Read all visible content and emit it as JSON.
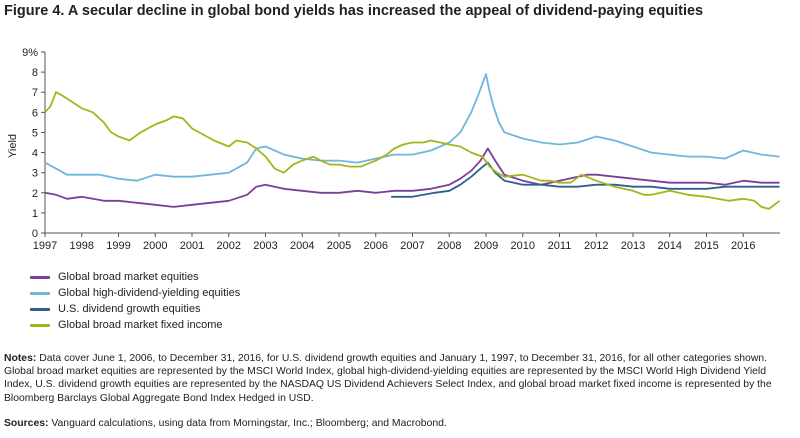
{
  "title": "Figure 4. A secular decline in global bond yields has increased the appeal of dividend-paying equities",
  "notes_label": "Notes:",
  "notes_text": "Data cover June 1, 2006, to December 31, 2016, for U.S. dividend growth equities and January 1, 1997, to December 31, 2016, for all other categories shown. Global broad market equities are represented by the MSCI World Index, global high-dividend-yielding equities are represented by the MSCI World High Dividend Yield Index, U.S. dividend growth equities are represented by the NASDAQ US Dividend Achievers Select Index, and global broad market fixed income is represented by the Bloomberg Barclays Global Aggregate Bond Index Hedged in USD.",
  "sources_label": "Sources:",
  "sources_text": "Vanguard calculations, using data from Morningstar, Inc.; Bloomberg; and Macrobond.",
  "chart_data": {
    "type": "line",
    "ylabel": "Yield",
    "ylim": [
      0,
      9
    ],
    "yticks": [
      "0",
      "1",
      "2",
      "3",
      "4",
      "5",
      "6",
      "7",
      "8",
      "9%"
    ],
    "xlim": [
      1997,
      2017
    ],
    "xticks": [
      "1997",
      "1998",
      "1999",
      "2000",
      "2001",
      "2002",
      "2003",
      "2004",
      "2005",
      "2006",
      "2007",
      "2008",
      "2009",
      "2010",
      "2011",
      "2012",
      "2013",
      "2014",
      "2015",
      "2016"
    ],
    "grid": false,
    "legend": "bottom-left",
    "series": [
      {
        "name": "Global broad market equities",
        "color": "#7b3f98",
        "x": [
          1997.0,
          1997.3,
          1997.6,
          1998.0,
          1998.3,
          1998.6,
          1999.0,
          1999.5,
          2000.0,
          2000.5,
          2001.0,
          2001.5,
          2002.0,
          2002.5,
          2002.75,
          2003.0,
          2003.5,
          2004.0,
          2004.5,
          2005.0,
          2005.5,
          2006.0,
          2006.5,
          2007.0,
          2007.5,
          2008.0,
          2008.3,
          2008.6,
          2008.85,
          2009.05,
          2009.25,
          2009.5,
          2010.0,
          2010.5,
          2011.0,
          2011.5,
          2011.75,
          2012.0,
          2012.5,
          2013.0,
          2013.5,
          2014.0,
          2014.5,
          2015.0,
          2015.5,
          2016.0,
          2016.5,
          2016.99
        ],
        "y": [
          2.0,
          1.9,
          1.7,
          1.8,
          1.7,
          1.6,
          1.6,
          1.5,
          1.4,
          1.3,
          1.4,
          1.5,
          1.6,
          1.9,
          2.3,
          2.4,
          2.2,
          2.1,
          2.0,
          2.0,
          2.1,
          2.0,
          2.1,
          2.1,
          2.2,
          2.4,
          2.7,
          3.1,
          3.6,
          4.2,
          3.6,
          2.9,
          2.6,
          2.4,
          2.6,
          2.8,
          2.9,
          2.9,
          2.8,
          2.7,
          2.6,
          2.5,
          2.5,
          2.5,
          2.4,
          2.6,
          2.5,
          2.5
        ]
      },
      {
        "name": "Global high-dividend-yielding equities",
        "color": "#6fb6dd",
        "x": [
          1997.0,
          1997.3,
          1997.6,
          1998.0,
          1998.5,
          1999.0,
          1999.5,
          2000.0,
          2000.5,
          2001.0,
          2001.5,
          2002.0,
          2002.5,
          2002.75,
          2003.0,
          2003.5,
          2004.0,
          2004.5,
          2005.0,
          2005.5,
          2006.0,
          2006.5,
          2007.0,
          2007.5,
          2008.0,
          2008.3,
          2008.6,
          2008.8,
          2009.0,
          2009.1,
          2009.2,
          2009.35,
          2009.5,
          2010.0,
          2010.5,
          2011.0,
          2011.5,
          2012.0,
          2012.5,
          2013.0,
          2013.5,
          2014.0,
          2014.5,
          2015.0,
          2015.5,
          2016.0,
          2016.5,
          2016.99
        ],
        "y": [
          3.5,
          3.2,
          2.9,
          2.9,
          2.9,
          2.7,
          2.6,
          2.9,
          2.8,
          2.8,
          2.9,
          3.0,
          3.5,
          4.2,
          4.3,
          3.9,
          3.7,
          3.6,
          3.6,
          3.5,
          3.7,
          3.9,
          3.9,
          4.1,
          4.5,
          5.0,
          6.0,
          6.9,
          7.9,
          7.0,
          6.3,
          5.5,
          5.0,
          4.7,
          4.5,
          4.4,
          4.5,
          4.8,
          4.6,
          4.3,
          4.0,
          3.9,
          3.8,
          3.8,
          3.7,
          4.1,
          3.9,
          3.8
        ]
      },
      {
        "name": "U.S. dividend growth equities",
        "color": "#2e5f8f",
        "x": [
          2006.42,
          2006.7,
          2007.0,
          2007.3,
          2007.6,
          2008.0,
          2008.3,
          2008.6,
          2008.85,
          2009.05,
          2009.25,
          2009.5,
          2010.0,
          2010.5,
          2011.0,
          2011.5,
          2012.0,
          2012.5,
          2013.0,
          2013.5,
          2014.0,
          2014.5,
          2015.0,
          2015.5,
          2016.0,
          2016.5,
          2016.99
        ],
        "y": [
          1.8,
          1.8,
          1.8,
          1.9,
          2.0,
          2.1,
          2.4,
          2.8,
          3.2,
          3.5,
          3.0,
          2.6,
          2.4,
          2.4,
          2.3,
          2.3,
          2.4,
          2.4,
          2.3,
          2.3,
          2.2,
          2.2,
          2.2,
          2.3,
          2.3,
          2.3,
          2.3
        ]
      },
      {
        "name": "Global broad market fixed income",
        "color": "#a6b41c",
        "x": [
          1997.0,
          1997.15,
          1997.3,
          1997.5,
          1997.75,
          1998.0,
          1998.3,
          1998.6,
          1998.8,
          1999.0,
          1999.3,
          1999.6,
          2000.0,
          2000.3,
          2000.5,
          2000.75,
          2001.0,
          2001.3,
          2001.6,
          2002.0,
          2002.2,
          2002.5,
          2002.75,
          2003.0,
          2003.25,
          2003.5,
          2003.75,
          2004.0,
          2004.3,
          2004.5,
          2004.75,
          2005.0,
          2005.3,
          2005.6,
          2006.0,
          2006.3,
          2006.5,
          2006.75,
          2007.0,
          2007.3,
          2007.5,
          2008.0,
          2008.3,
          2008.6,
          2008.9,
          2009.1,
          2009.3,
          2009.5,
          2010.0,
          2010.5,
          2010.75,
          2011.0,
          2011.3,
          2011.6,
          2012.0,
          2012.5,
          2013.0,
          2013.3,
          2013.5,
          2014.0,
          2014.5,
          2015.0,
          2015.3,
          2015.6,
          2016.0,
          2016.3,
          2016.5,
          2016.7,
          2016.99
        ],
        "y": [
          6.0,
          6.3,
          7.0,
          6.8,
          6.5,
          6.2,
          6.0,
          5.5,
          5.0,
          4.8,
          4.6,
          5.0,
          5.4,
          5.6,
          5.8,
          5.7,
          5.2,
          4.9,
          4.6,
          4.3,
          4.6,
          4.5,
          4.2,
          3.8,
          3.2,
          3.0,
          3.4,
          3.6,
          3.8,
          3.6,
          3.4,
          3.4,
          3.3,
          3.3,
          3.6,
          3.9,
          4.2,
          4.4,
          4.5,
          4.5,
          4.6,
          4.4,
          4.3,
          4.0,
          3.8,
          3.3,
          3.0,
          2.8,
          2.9,
          2.6,
          2.6,
          2.5,
          2.5,
          2.9,
          2.6,
          2.3,
          2.1,
          1.9,
          1.9,
          2.1,
          1.9,
          1.8,
          1.7,
          1.6,
          1.7,
          1.6,
          1.3,
          1.2,
          1.6
        ]
      }
    ]
  }
}
